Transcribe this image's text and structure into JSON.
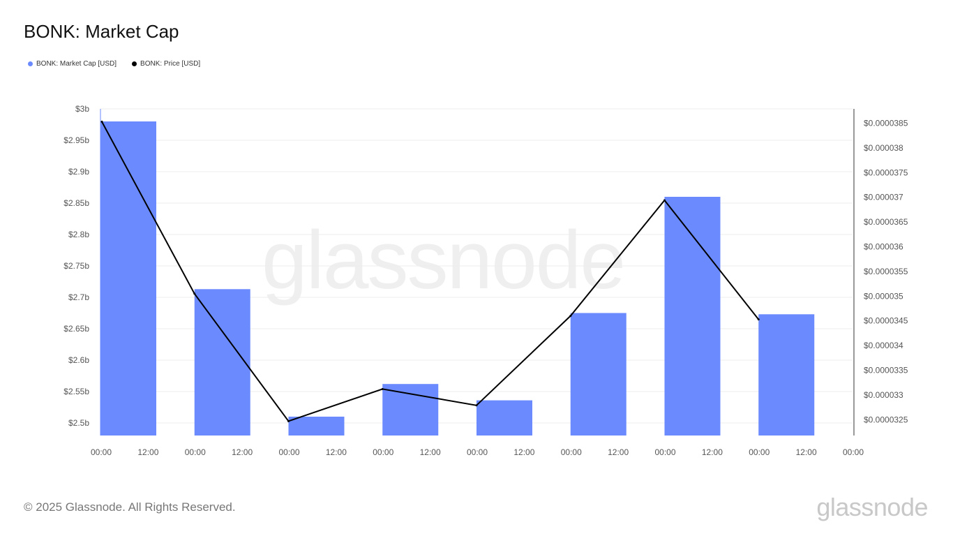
{
  "title": "BONK: Market Cap",
  "legend": [
    {
      "label": "BONK: Market Cap [USD]",
      "color": "#6b8afd"
    },
    {
      "label": "BONK: Price [USD]",
      "color": "#000000"
    }
  ],
  "watermark": "glassnode",
  "footer": {
    "copyright": "© 2025 Glassnode. All Rights Reserved.",
    "logo": "glassnode"
  },
  "chart_data": {
    "type": "bar",
    "x_tick_labels": [
      "00:00",
      "12:00",
      "00:00",
      "12:00",
      "00:00",
      "12:00",
      "00:00",
      "12:00",
      "00:00",
      "12:00",
      "00:00",
      "12:00",
      "00:00",
      "12:00",
      "00:00",
      "12:00",
      "00:00"
    ],
    "series": [
      {
        "name": "BONK: Market Cap [USD]",
        "type": "bar",
        "color": "#6b8afd",
        "values": [
          2980000000.0,
          2713000000.0,
          2510000000.0,
          2562000000.0,
          2536000000.0,
          2675000000.0,
          2860000000.0,
          2673000000.0
        ]
      },
      {
        "name": "BONK: Price [USD]",
        "type": "line",
        "color": "#000000",
        "values": [
          3.853e-05,
          3.505e-05,
          3.247e-05,
          3.312e-05,
          3.279e-05,
          3.46e-05,
          3.694e-05,
          3.453e-05
        ]
      }
    ],
    "y_left": {
      "min": 2480000000.0,
      "max": 3000000000.0,
      "ticks": [
        3000000000.0,
        2950000000.0,
        2900000000.0,
        2850000000.0,
        2800000000.0,
        2750000000.0,
        2700000000.0,
        2650000000.0,
        2600000000.0,
        2550000000.0,
        2500000000.0
      ],
      "labels": [
        "$3b",
        "$2.95b",
        "$2.9b",
        "$2.85b",
        "$2.8b",
        "$2.75b",
        "$2.7b",
        "$2.65b",
        "$2.6b",
        "$2.55b",
        "$2.5b"
      ]
    },
    "y_right": {
      "min": 3.218e-05,
      "max": 3.879e-05,
      "ticks": [
        3.85e-05,
        3.8e-05,
        3.75e-05,
        3.7e-05,
        3.65e-05,
        3.6e-05,
        3.55e-05,
        3.5e-05,
        3.45e-05,
        3.4e-05,
        3.35e-05,
        3.3e-05,
        3.25e-05
      ],
      "labels": [
        "$0.0000385",
        "$0.000038",
        "$0.0000375",
        "$0.000037",
        "$0.0000365",
        "$0.000036",
        "$0.0000355",
        "$0.000035",
        "$0.0000345",
        "$0.000034",
        "$0.0000335",
        "$0.000033",
        "$0.0000325"
      ]
    },
    "grid": true,
    "legend_position": "top-left"
  }
}
